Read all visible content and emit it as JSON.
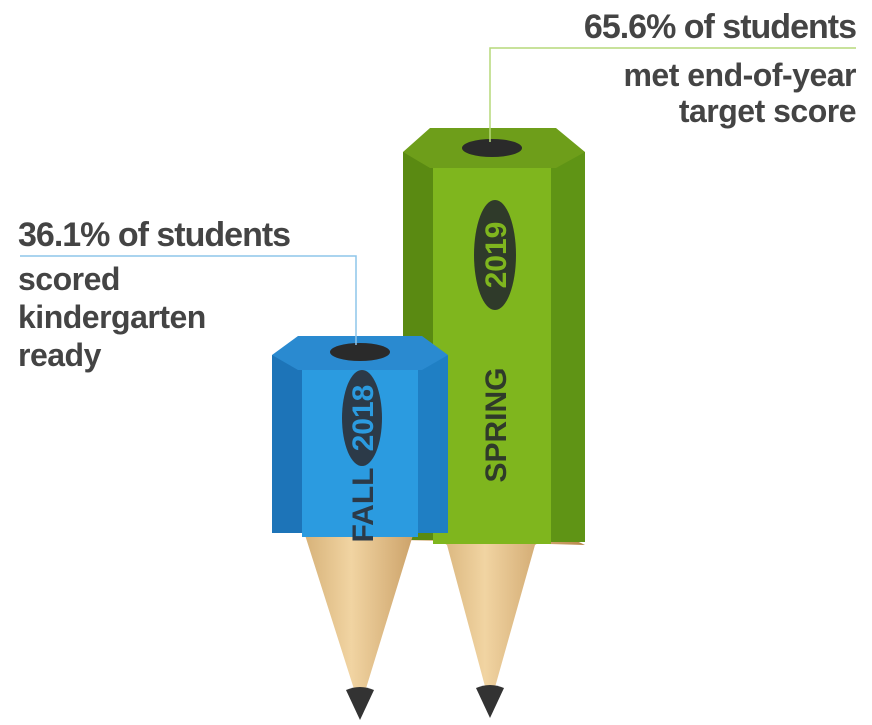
{
  "callouts": [
    {
      "headline": "36.1% of students",
      "lines": [
        "scored",
        "kindergarten",
        "ready"
      ]
    },
    {
      "headline": "65.6% of students",
      "lines": [
        "met end-of-year",
        "target score"
      ]
    }
  ],
  "pencils": [
    {
      "season": "FALL",
      "year": "2018"
    },
    {
      "season": "SPRING",
      "year": "2019"
    }
  ]
}
